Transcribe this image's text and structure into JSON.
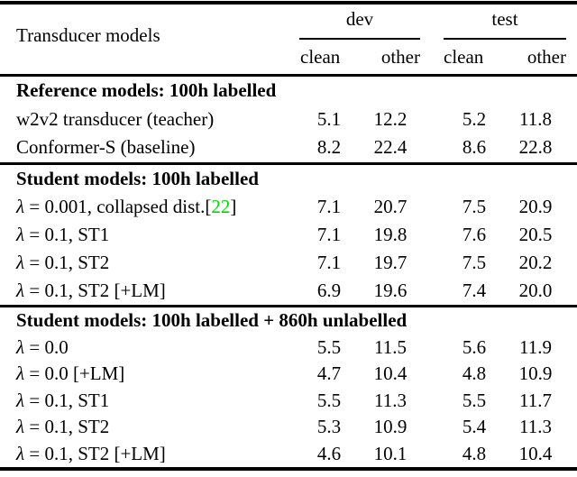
{
  "table": {
    "col_label": "Transducer models",
    "groups": [
      {
        "label": "dev",
        "sub": [
          "clean",
          "other"
        ]
      },
      {
        "label": "test",
        "sub": [
          "clean",
          "other"
        ]
      }
    ],
    "sections": [
      {
        "title": "Reference models: 100h labelled",
        "rows": [
          {
            "label": "w2v2 transducer (teacher)",
            "values": [
              "5.1",
              "12.2",
              "5.2",
              "11.8"
            ]
          },
          {
            "label": "Conformer-S (baseline)",
            "values": [
              "8.2",
              "22.4",
              "8.6",
              "22.8"
            ]
          }
        ]
      },
      {
        "title": "Student models: 100h labelled",
        "rows": [
          {
            "label": "λ = 0.001, collapsed dist.",
            "citation": {
              "prefix": "[",
              "number": "22",
              "suffix": "]"
            },
            "values": [
              "7.1",
              "20.7",
              "7.5",
              "20.9"
            ]
          },
          {
            "label": "λ = 0.1, ST1",
            "values": [
              "7.1",
              "19.8",
              "7.6",
              "20.5"
            ]
          },
          {
            "label": "λ = 0.1, ST2",
            "values": [
              "7.1",
              "19.7",
              "7.5",
              "20.2"
            ]
          },
          {
            "label": "λ = 0.1, ST2 [+LM]",
            "values": [
              "6.9",
              "19.6",
              "7.4",
              "20.0"
            ]
          }
        ]
      },
      {
        "title": "Student models: 100h labelled + 860h unlabelled",
        "rows": [
          {
            "label": "λ = 0.0",
            "values": [
              "5.5",
              "11.5",
              "5.6",
              "11.9"
            ]
          },
          {
            "label": "λ = 0.0 [+LM]",
            "values": [
              "4.7",
              "10.4",
              "4.8",
              "10.9"
            ]
          },
          {
            "label": "λ = 0.1, ST1",
            "values": [
              "5.5",
              "11.3",
              "5.5",
              "11.7"
            ]
          },
          {
            "label": "λ = 0.1, ST2",
            "values": [
              "5.3",
              "10.9",
              "5.4",
              "11.3"
            ]
          },
          {
            "label": "λ = 0.1, ST2 [+LM]",
            "values": [
              "4.6",
              "10.1",
              "4.8",
              "10.4"
            ]
          }
        ]
      }
    ]
  },
  "colors": {
    "citation_green": "#00D900",
    "text": "#000000",
    "background": "#ffffff",
    "rule": "#000000"
  },
  "chart_data": {
    "type": "table",
    "title": "Transducer models",
    "column_groups": [
      "dev",
      "test"
    ],
    "columns": [
      "dev clean",
      "dev other",
      "test clean",
      "test other"
    ],
    "sections": [
      {
        "section": "Reference models: 100h labelled",
        "rows": [
          {
            "model": "w2v2 transducer (teacher)",
            "dev_clean": 5.1,
            "dev_other": 12.2,
            "test_clean": 5.2,
            "test_other": 11.8
          },
          {
            "model": "Conformer-S (baseline)",
            "dev_clean": 8.2,
            "dev_other": 22.4,
            "test_clean": 8.6,
            "test_other": 22.8
          }
        ]
      },
      {
        "section": "Student models: 100h labelled",
        "rows": [
          {
            "model": "λ = 0.001, collapsed dist.[22]",
            "dev_clean": 7.1,
            "dev_other": 20.7,
            "test_clean": 7.5,
            "test_other": 20.9
          },
          {
            "model": "λ = 0.1, ST1",
            "dev_clean": 7.1,
            "dev_other": 19.8,
            "test_clean": 7.6,
            "test_other": 20.5
          },
          {
            "model": "λ = 0.1, ST2",
            "dev_clean": 7.1,
            "dev_other": 19.7,
            "test_clean": 7.5,
            "test_other": 20.2
          },
          {
            "model": "λ = 0.1, ST2 [+LM]",
            "dev_clean": 6.9,
            "dev_other": 19.6,
            "test_clean": 7.4,
            "test_other": 20.0
          }
        ]
      },
      {
        "section": "Student models: 100h labelled + 860h unlabelled",
        "rows": [
          {
            "model": "λ = 0.0",
            "dev_clean": 5.5,
            "dev_other": 11.5,
            "test_clean": 5.6,
            "test_other": 11.9
          },
          {
            "model": "λ = 0.0 [+LM]",
            "dev_clean": 4.7,
            "dev_other": 10.4,
            "test_clean": 4.8,
            "test_other": 10.9
          },
          {
            "model": "λ = 0.1, ST1",
            "dev_clean": 5.5,
            "dev_other": 11.3,
            "test_clean": 5.5,
            "test_other": 11.7
          },
          {
            "model": "λ = 0.1, ST2",
            "dev_clean": 5.3,
            "dev_other": 10.9,
            "test_clean": 5.4,
            "test_other": 11.3
          },
          {
            "model": "λ = 0.1, ST2 [+LM]",
            "dev_clean": 4.6,
            "dev_other": 10.1,
            "test_clean": 4.8,
            "test_other": 10.4
          }
        ]
      }
    ]
  }
}
